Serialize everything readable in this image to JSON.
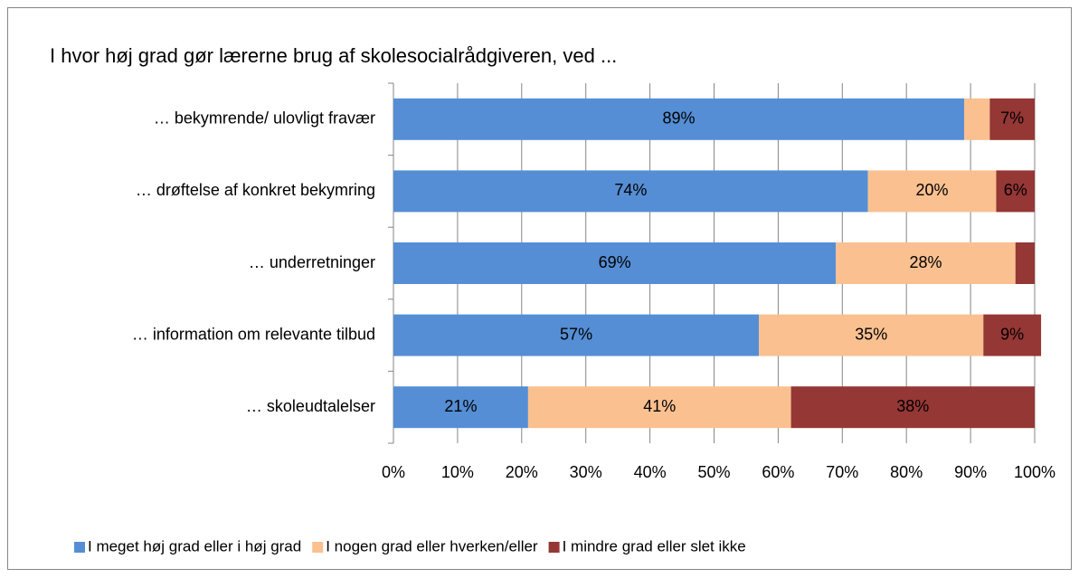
{
  "chart_data": {
    "type": "stacked-bar-horizontal",
    "title": "I hvor høj grad gør lærerne brug af skolesocialrådgiveren, ved ...",
    "categories": [
      "… bekymrende/ ulovligt fravær",
      "… drøftelse af konkret bekymring",
      "… underretninger",
      "… information om relevante tilbud",
      "… skoleudtalelser"
    ],
    "series": [
      {
        "name": "I meget høj grad eller i høj grad",
        "color": "#558ed5",
        "values": [
          89,
          74,
          69,
          57,
          21
        ],
        "value_labels": [
          "89%",
          "74%",
          "69%",
          "57%",
          "21%"
        ]
      },
      {
        "name": "I nogen grad eller hverken/eller",
        "color": "#fac090",
        "values": [
          4,
          20,
          28,
          35,
          41
        ],
        "value_labels": [
          null,
          "20%",
          "28%",
          "35%",
          "41%"
        ]
      },
      {
        "name": "I mindre grad eller slet ikke",
        "color": "#953735",
        "values": [
          7,
          6,
          3,
          9,
          38
        ],
        "value_labels": [
          "7%",
          "6%",
          null,
          "9%",
          "38%"
        ]
      }
    ],
    "xlim": [
      0,
      100
    ],
    "xticks": [
      {
        "value": 0,
        "label": "0%"
      },
      {
        "value": 10,
        "label": "10%"
      },
      {
        "value": 20,
        "label": "20%"
      },
      {
        "value": 30,
        "label": "30%"
      },
      {
        "value": 40,
        "label": "40%"
      },
      {
        "value": 50,
        "label": "50%"
      },
      {
        "value": 60,
        "label": "60%"
      },
      {
        "value": 70,
        "label": "70%"
      },
      {
        "value": 80,
        "label": "80%"
      },
      {
        "value": 90,
        "label": "90%"
      },
      {
        "value": 100,
        "label": "100%"
      }
    ],
    "grid": true,
    "legend": "bottom"
  }
}
